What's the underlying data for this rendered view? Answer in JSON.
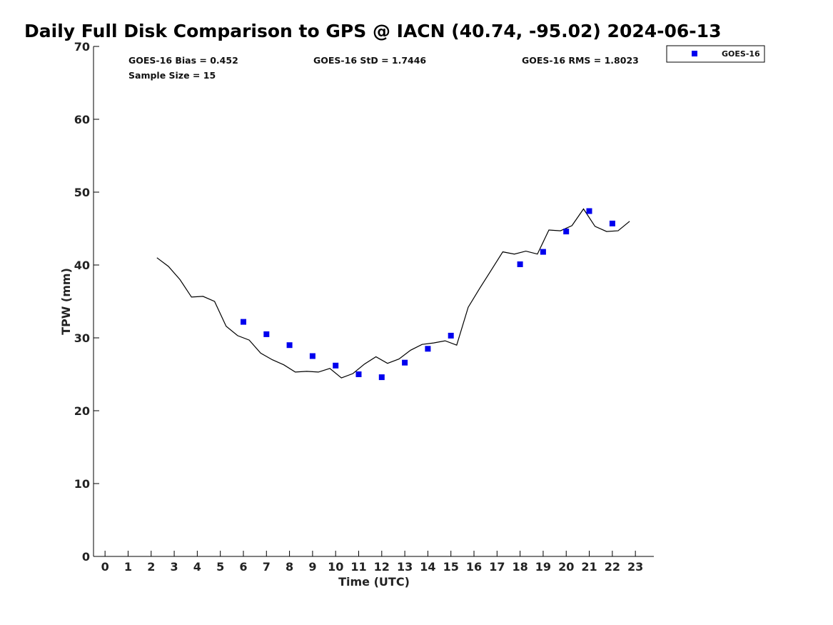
{
  "chart_data": {
    "type": "scatter",
    "title": "Daily Full Disk Comparison to GPS @ IACN (40.74, -95.02) 2024-06-13",
    "xlabel": "Time (UTC)",
    "ylabel": "TPW (mm)",
    "xlim": [
      -0.5,
      23.8
    ],
    "ylim": [
      0,
      70
    ],
    "x_ticks": [
      0,
      1,
      2,
      3,
      4,
      5,
      6,
      7,
      8,
      9,
      10,
      11,
      12,
      13,
      14,
      15,
      16,
      17,
      18,
      19,
      20,
      21,
      22,
      23
    ],
    "y_ticks": [
      0,
      10,
      20,
      30,
      40,
      50,
      60,
      70
    ],
    "grid": false,
    "legend_position": "top-right",
    "stats": {
      "bias": "GOES-16 Bias = 0.452",
      "sample_size": "Sample Size = 15",
      "std": "GOES-16 StD = 1.7446",
      "rms": "GOES-16 RMS = 1.8023"
    },
    "series": [
      {
        "name": "GOES-16",
        "kind": "scatter",
        "marker": "square",
        "color": "#0000ee",
        "x": [
          6,
          7,
          8,
          9,
          10,
          11,
          12,
          13,
          14,
          15,
          18,
          19,
          20,
          21,
          22
        ],
        "y": [
          32.2,
          30.5,
          29.0,
          27.5,
          26.2,
          25.0,
          24.6,
          26.6,
          28.5,
          30.3,
          40.1,
          41.8,
          44.6,
          47.4,
          45.7
        ]
      },
      {
        "kind": "line",
        "color": "#000000",
        "x": [
          2.25,
          2.75,
          3.25,
          3.75,
          4.25,
          4.75,
          5.25,
          5.75,
          6.25,
          6.75,
          7.25,
          7.75,
          8.25,
          8.75,
          9.25,
          9.75,
          10.25,
          10.75,
          11.25,
          11.75,
          12.25,
          12.75,
          13.25,
          13.75,
          14.25,
          14.75,
          15.25,
          15.75,
          16.25,
          16.75,
          17.25,
          17.75,
          18.25,
          18.75,
          19.25,
          19.75,
          20.25,
          20.75,
          21.25,
          21.75,
          22.25,
          22.75
        ],
        "y": [
          41.0,
          39.8,
          38.0,
          35.6,
          35.7,
          35.0,
          31.6,
          30.3,
          29.7,
          27.9,
          27.0,
          26.3,
          25.3,
          25.4,
          25.3,
          25.8,
          24.5,
          25.1,
          26.4,
          27.4,
          26.5,
          27.1,
          28.3,
          29.1,
          29.3,
          29.6,
          29.0,
          34.2,
          36.8,
          39.3,
          41.8,
          41.5,
          41.9,
          41.5,
          44.8,
          44.7,
          45.4,
          47.7,
          45.3,
          44.6,
          44.7,
          46.0
        ]
      }
    ]
  }
}
